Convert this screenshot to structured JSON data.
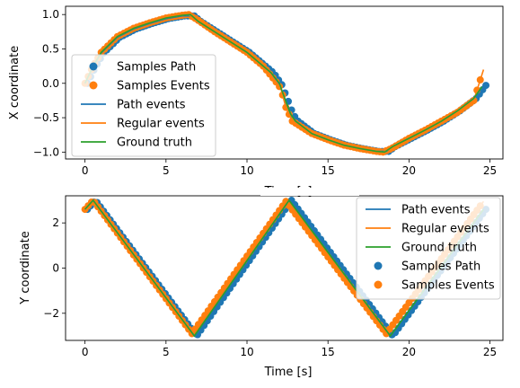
{
  "figure": {
    "bottom_xlabel": "Time [s]",
    "top_xlabel_fragment": "Time [s]"
  },
  "chart_data": [
    {
      "type": "line",
      "xlabel": "",
      "ylabel": "X coordinate",
      "xlim": [
        -1.2,
        25.8
      ],
      "ylim": [
        -1.1,
        1.12
      ],
      "xticks": [
        0,
        5,
        10,
        15,
        20,
        25
      ],
      "yticks": [
        -1.0,
        -0.5,
        0.0,
        0.5,
        1.0
      ],
      "ytick_labels": [
        "−1.0",
        "−0.5",
        "0.0",
        "0.5",
        "1.0"
      ],
      "xtick_labels": [
        "0",
        "5",
        "10",
        "15",
        "20",
        "25"
      ],
      "legend_position": "left",
      "legend": [
        {
          "label": "Samples Path",
          "kind": "marker",
          "color": "#1f77b4"
        },
        {
          "label": "Samples Events",
          "kind": "marker",
          "color": "#ff7f0e"
        },
        {
          "label": "Path events",
          "kind": "line",
          "color": "#1f77b4"
        },
        {
          "label": "Regular events",
          "kind": "line",
          "color": "#ff7f0e"
        },
        {
          "label": "Ground truth",
          "kind": "line",
          "color": "#2ca02c"
        }
      ],
      "series": [
        {
          "name": "Ground truth",
          "color": "#2ca02c",
          "style": "line",
          "x": [
            0,
            0.5,
            1,
            2,
            3,
            4,
            5,
            6,
            6.5,
            7,
            8,
            9,
            10,
            11,
            11.5,
            12,
            12.3,
            12.7,
            13,
            14,
            15,
            16,
            17,
            18,
            18.5,
            19,
            20,
            21,
            22,
            23,
            24,
            24.5
          ],
          "y": [
            0.0,
            0.25,
            0.45,
            0.68,
            0.8,
            0.88,
            0.95,
            0.99,
            1.0,
            0.9,
            0.75,
            0.6,
            0.45,
            0.25,
            0.15,
            0.0,
            -0.2,
            -0.45,
            -0.55,
            -0.73,
            -0.82,
            -0.9,
            -0.95,
            -0.99,
            -1.0,
            -0.92,
            -0.8,
            -0.68,
            -0.55,
            -0.4,
            -0.22,
            -0.05
          ]
        },
        {
          "name": "Path events",
          "color": "#1f77b4",
          "style": "line",
          "x": [
            0,
            0.5,
            1,
            2,
            3,
            4,
            5,
            6,
            6.6,
            7,
            8,
            9,
            10,
            11,
            11.5,
            12,
            12.3,
            12.7,
            13,
            14,
            15,
            16,
            17,
            18,
            18.6,
            19,
            20,
            21,
            22,
            23,
            24,
            24.6
          ],
          "y": [
            0.0,
            0.24,
            0.44,
            0.67,
            0.79,
            0.87,
            0.94,
            0.98,
            0.98,
            0.9,
            0.75,
            0.6,
            0.45,
            0.25,
            0.15,
            -0.02,
            -0.2,
            -0.45,
            -0.55,
            -0.73,
            -0.82,
            -0.9,
            -0.95,
            -0.99,
            -0.99,
            -0.92,
            -0.8,
            -0.68,
            -0.55,
            -0.4,
            -0.22,
            -0.03
          ]
        },
        {
          "name": "Regular events",
          "color": "#ff7f0e",
          "style": "line",
          "x": [
            0,
            0.5,
            1,
            2,
            3,
            4,
            5,
            6,
            6.4,
            6.9,
            8,
            9,
            10,
            11,
            11.8,
            12.1,
            12.4,
            12.8,
            14,
            15,
            16,
            17,
            18,
            18.4,
            18.9,
            20,
            21,
            22,
            23,
            24,
            24.6
          ],
          "y": [
            0.0,
            0.25,
            0.45,
            0.68,
            0.8,
            0.88,
            0.95,
            0.99,
            1.0,
            0.93,
            0.75,
            0.6,
            0.45,
            0.25,
            0.02,
            -0.08,
            -0.35,
            -0.55,
            -0.73,
            -0.82,
            -0.9,
            -0.95,
            -0.99,
            -1.0,
            -0.95,
            -0.8,
            -0.68,
            -0.55,
            -0.42,
            -0.25,
            0.2
          ]
        },
        {
          "name": "Samples Path",
          "color": "#1f77b4",
          "style": "markers",
          "x_step": 0.2,
          "x_start": 0,
          "x_end": 24.6,
          "follow": "Path events",
          "offset_x": 0.15
        },
        {
          "name": "Samples Events",
          "color": "#ff7f0e",
          "style": "markers",
          "x_step": 0.2,
          "x_start": 0,
          "x_end": 24.4,
          "follow": "Regular events",
          "offset_x": 0
        }
      ]
    },
    {
      "type": "line",
      "xlabel": "Time [s]",
      "ylabel": "Y coordinate",
      "xlim": [
        -1.2,
        25.8
      ],
      "ylim": [
        -3.2,
        3.2
      ],
      "xticks": [
        0,
        5,
        10,
        15,
        20,
        25
      ],
      "yticks": [
        -2,
        0,
        2
      ],
      "ytick_labels": [
        "−2",
        "0",
        "2"
      ],
      "xtick_labels": [
        "0",
        "5",
        "10",
        "15",
        "20",
        "25"
      ],
      "legend_position": "top-right",
      "legend": [
        {
          "label": "Path events",
          "kind": "line",
          "color": "#1f77b4"
        },
        {
          "label": "Regular events",
          "kind": "line",
          "color": "#ff7f0e"
        },
        {
          "label": "Ground truth",
          "kind": "line",
          "color": "#2ca02c"
        },
        {
          "label": "Samples Path",
          "kind": "marker",
          "color": "#1f77b4"
        },
        {
          "label": "Samples Events",
          "kind": "marker",
          "color": "#ff7f0e"
        }
      ],
      "series": [
        {
          "name": "Ground truth",
          "color": "#2ca02c",
          "style": "line",
          "x": [
            0,
            0.5,
            6.75,
            12.6,
            18.85,
            24.6
          ],
          "y": [
            2.6,
            3.0,
            -3.0,
            3.0,
            -3.0,
            2.6
          ]
        },
        {
          "name": "Path events",
          "color": "#1f77b4",
          "style": "line",
          "x": [
            0,
            0.5,
            6.75,
            12.6,
            18.85,
            24.6
          ],
          "y": [
            2.6,
            3.0,
            -3.0,
            3.0,
            -3.0,
            2.6
          ]
        },
        {
          "name": "Regular events",
          "color": "#ff7f0e",
          "style": "line",
          "x": [
            0,
            0.5,
            6.6,
            12.4,
            18.6,
            24.6
          ],
          "y": [
            2.6,
            3.0,
            -2.9,
            2.95,
            -2.9,
            2.95
          ]
        },
        {
          "name": "Samples Path",
          "color": "#1f77b4",
          "style": "markers",
          "x_step": 0.2,
          "x_start": 0,
          "x_end": 24.6,
          "follow": "Path events",
          "offset_x": 0.15
        },
        {
          "name": "Samples Events",
          "color": "#ff7f0e",
          "style": "markers",
          "x_step": 0.2,
          "x_start": 0,
          "x_end": 24.4,
          "follow": "Regular events",
          "offset_x": 0
        }
      ]
    }
  ]
}
